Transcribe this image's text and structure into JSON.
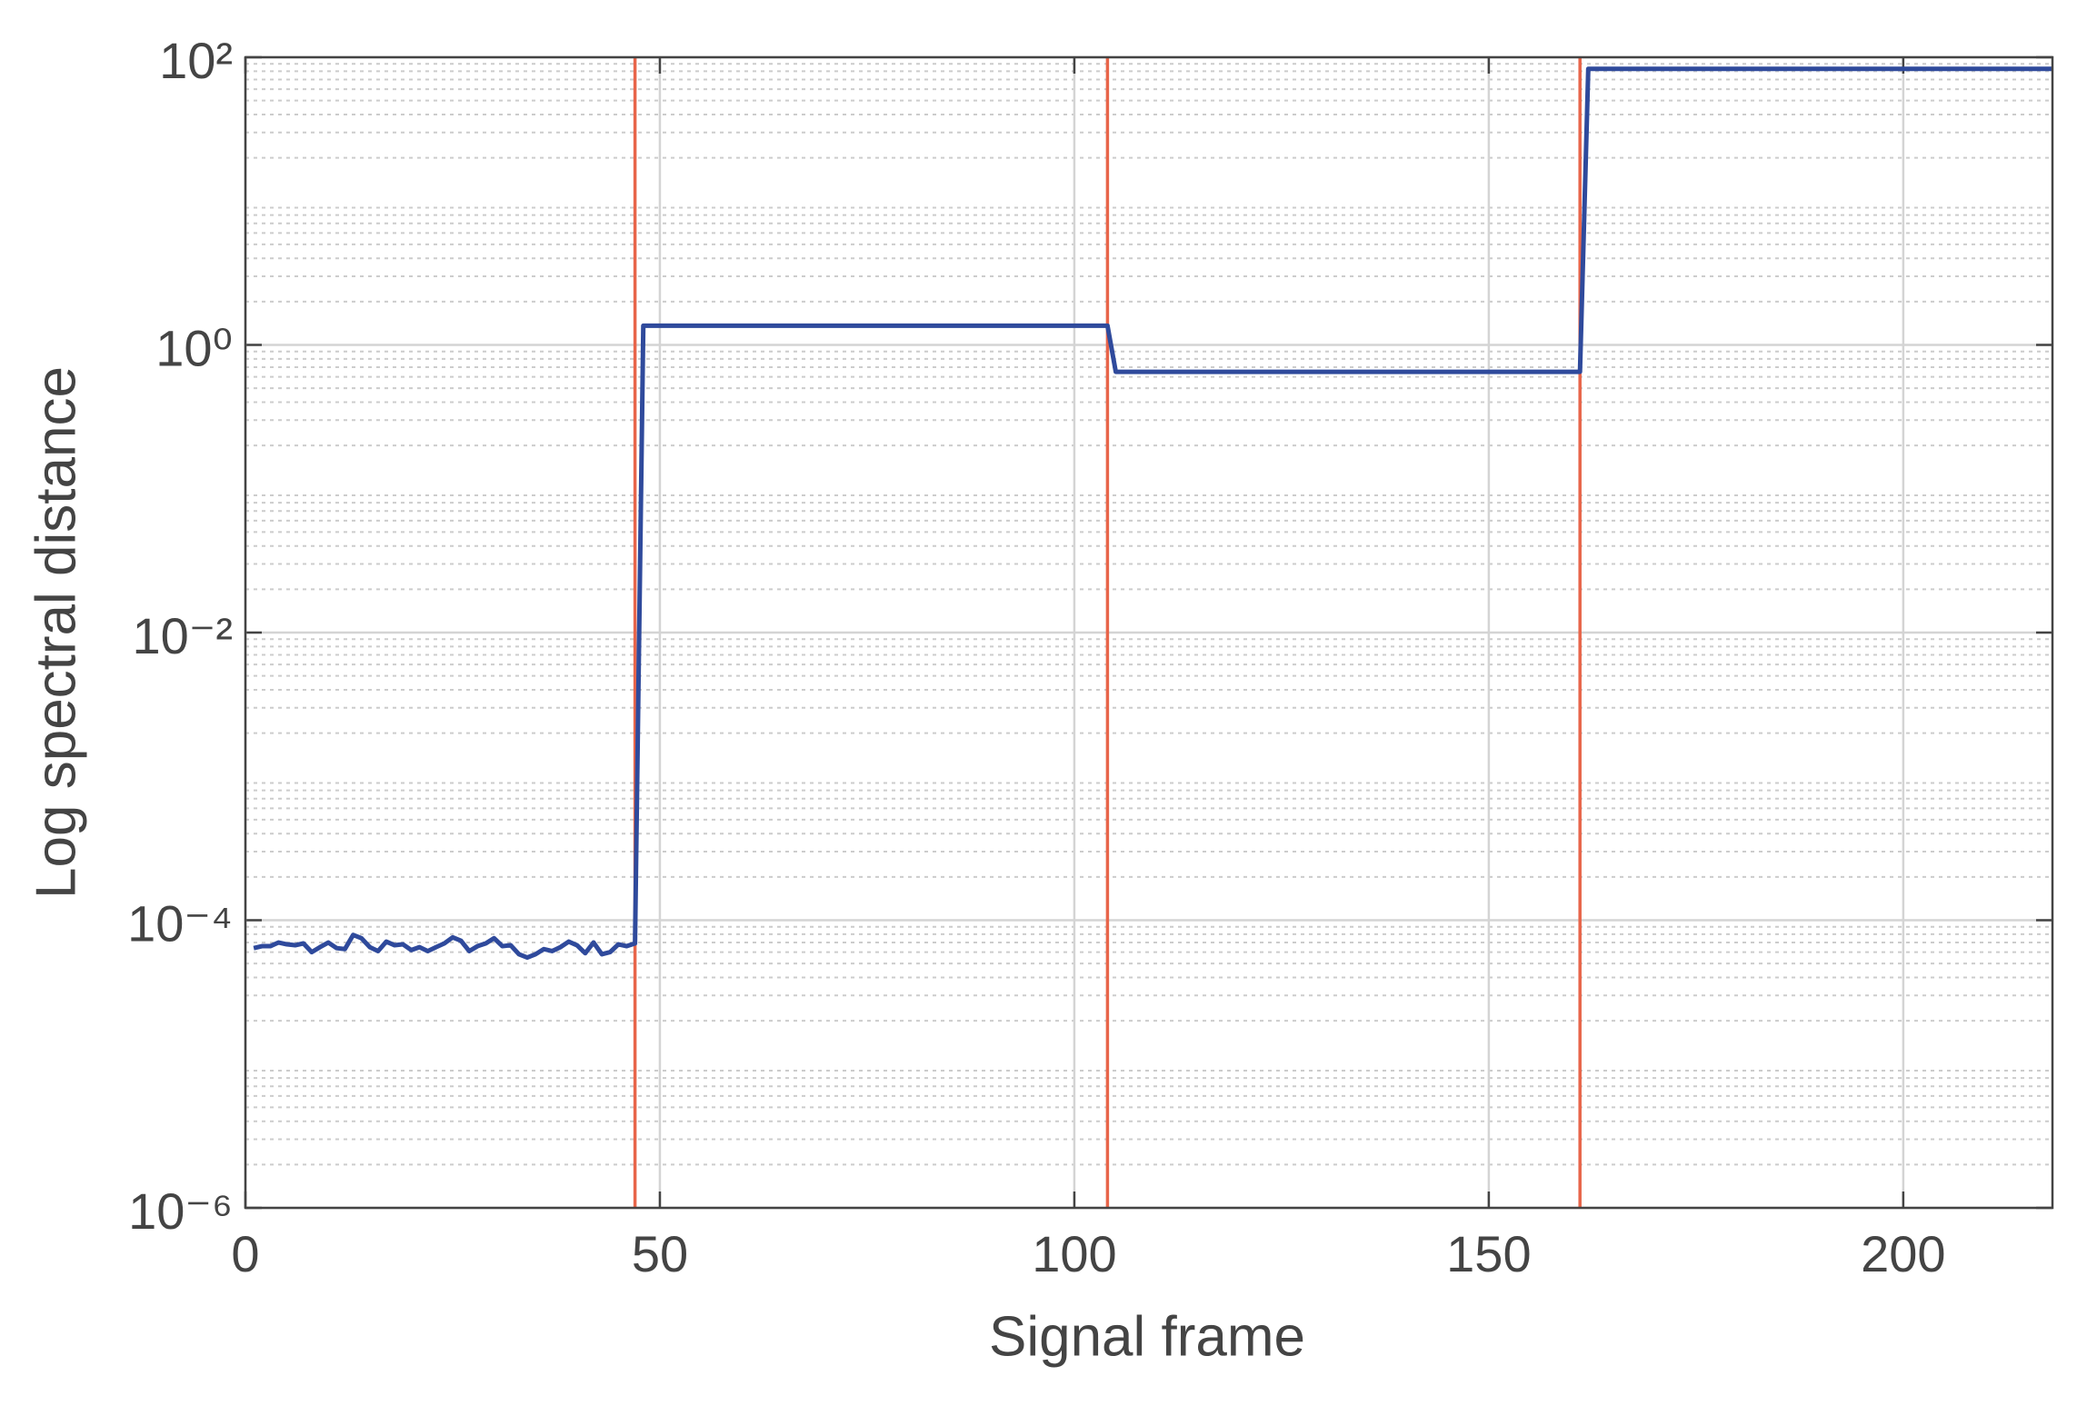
{
  "chart_data": {
    "type": "line",
    "xlabel": "Signal frame",
    "ylabel": "Log spectral distance",
    "x": [
      1,
      2,
      3,
      4,
      5,
      6,
      7,
      8,
      9,
      10,
      11,
      12,
      13,
      14,
      15,
      16,
      17,
      18,
      19,
      20,
      21,
      22,
      23,
      24,
      25,
      26,
      27,
      28,
      29,
      30,
      31,
      32,
      33,
      34,
      35,
      36,
      37,
      38,
      39,
      40,
      41,
      42,
      43,
      44,
      45,
      46,
      47,
      48,
      104,
      105,
      161,
      162,
      218
    ],
    "series": [
      {
        "name": "Log spectral distance",
        "color": "#2f4a9c",
        "values": [
          6.4e-05,
          6.6e-05,
          6.6e-05,
          7e-05,
          6.8e-05,
          6.7e-05,
          6.9e-05,
          6e-05,
          6.5e-05,
          7e-05,
          6.4e-05,
          6.3e-05,
          7.9e-05,
          7.5e-05,
          6.5e-05,
          6.1e-05,
          7.1e-05,
          6.7e-05,
          6.8e-05,
          6.2e-05,
          6.5e-05,
          6.1e-05,
          6.5e-05,
          6.9e-05,
          7.6e-05,
          7.2e-05,
          6.1e-05,
          6.6e-05,
          6.9e-05,
          7.5e-05,
          6.6e-05,
          6.7e-05,
          5.8e-05,
          5.5e-05,
          5.8e-05,
          6.3e-05,
          6.1e-05,
          6.5e-05,
          7.1e-05,
          6.7e-05,
          5.9e-05,
          7e-05,
          5.8e-05,
          6e-05,
          6.8e-05,
          6.6e-05,
          6.9e-05,
          1.36,
          1.36,
          0.65,
          0.65,
          83,
          83
        ]
      }
    ],
    "change_points": [
      47,
      104,
      161
    ],
    "change_color": "#e8654a",
    "xlim": [
      0,
      218
    ],
    "xticks": [
      0,
      50,
      100,
      150,
      200
    ],
    "ylim": [
      1e-06,
      100
    ],
    "log_y": true,
    "yticks": [
      {
        "value": 1e-06,
        "label": "10⁻⁶"
      },
      {
        "value": 0.0001,
        "label": "10⁻⁴"
      },
      {
        "value": 0.01,
        "label": "10⁻²"
      },
      {
        "value": 1,
        "label": "10⁰"
      },
      {
        "value": 100,
        "label": "10²"
      }
    ],
    "grid": true,
    "minor_grid": true
  }
}
